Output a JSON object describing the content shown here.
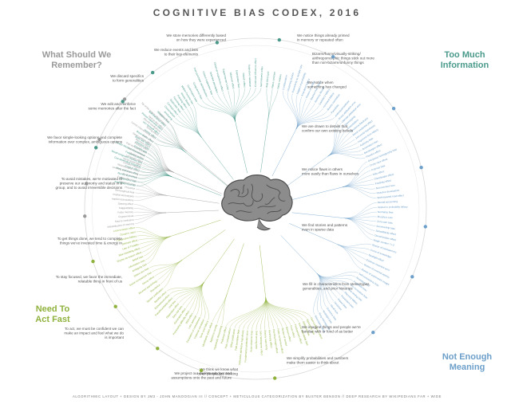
{
  "title": "COGNITIVE BIAS CODEX, 2016",
  "footer": "ALGORITHMIC LAYOUT + DESIGN BY JM3 - JOHN MANOOGIAN III // CONCEPT + METICULOUS CATEGORIZATION BY BUSTER BENSON // DEEP RESEARCH BY WIKIPEDIANS FAR + WIDE",
  "colors": {
    "too_much_information": "#4a9a8c",
    "not_enough_meaning": "#6c9fc9",
    "need_to_act_fast": "#8fb23d",
    "what_should_we_remember": "#9a9a9a",
    "brain": "#8a8a8a",
    "text": "#555555"
  },
  "quadrants": [
    {
      "id": "too_much_information",
      "label_lines": [
        "Too Much",
        "Information"
      ],
      "color": "#4a9a8c",
      "statements": [
        {
          "lines": [
            "We notice things already primed",
            "in memory or repeated often"
          ],
          "biases": [
            "Availability heuristic",
            "Attentional bias",
            "Illusory truth effect",
            "Mere exposure effect",
            "Context effect",
            "Cue-dependent forgetting",
            "Mood-congruent memory bias",
            "Frequency illusion",
            "Baader-Meinhof Phenomenon",
            "Empathy gap",
            "Omission bias",
            "Base rate fallacy"
          ]
        },
        {
          "lines": [
            "Bizarre/funny/visually-striking/",
            "anthropomorphic things stick out more",
            "than non-bizarre/unfunny things"
          ],
          "biases": [
            "Bizarreness effect",
            "Humor effect",
            "Von Restorff effect",
            "Picture superiority effect",
            "Self-relevance effect",
            "Negativity bias"
          ]
        },
        {
          "lines": [
            "We notice when",
            "something has changed"
          ],
          "biases": [
            "Anchoring",
            "Conservatism",
            "Contrast effect",
            "Distinction bias",
            "Focusing effect",
            "Framing effect",
            "Money illusion",
            "Weber-Fechner law"
          ]
        },
        {
          "lines": [
            "We are drawn to details that",
            "confirm our own existing beliefs"
          ],
          "biases": [
            "Confirmation bias",
            "Congruence bias",
            "Post-purchase rationalization",
            "Choice-supportive bias",
            "Selective perception",
            "Observer-expectancy effect",
            "Experimenter's bias",
            "Observer effect",
            "Expectation bias",
            "Ostrich effect",
            "Subjective validation",
            "Continued influence effect",
            "Semmelweis reflex"
          ]
        },
        {
          "lines": [
            "We notice flaws in others",
            "more easily than flaws in ourselves"
          ],
          "biases": [
            "Bias blind spot",
            "Naive cynicism",
            "Naive realism"
          ]
        }
      ]
    },
    {
      "id": "not_enough_meaning",
      "label_lines": [
        "Not Enough",
        "Meaning"
      ],
      "color": "#6c9fc9",
      "statements": [
        {
          "lines": [
            "We find stories and patterns",
            "even in sparse data"
          ],
          "biases": [
            "Confabulation",
            "Clustering illusion",
            "Insensitivity to sample size",
            "Neglect of probability",
            "Anecdotal fallacy",
            "Illusion of validity",
            "Masked man fallacy",
            "Recency illusion",
            "Gambler's fallacy",
            "Hot-hand fallacy",
            "Illusory correlation",
            "Pareidolia",
            "Anthropomorphism"
          ]
        },
        {
          "lines": [
            "We fill in characteristics from stereotypes,",
            "generalities, and prior histories"
          ],
          "biases": [
            "Group attribution error",
            "Ultimate attribution error",
            "Stereotyping",
            "Essentialism",
            "Functional fixedness",
            "Moral credential effect",
            "Just-world hypothesis",
            "Argument from fallacy",
            "Authority bias",
            "Automation bias",
            "Bandwagon effect",
            "Placebo effect"
          ]
        },
        {
          "lines": [
            "We imagine things and people we're",
            "familiar with or fond of as better"
          ],
          "biases": [
            "Out-group homogeneity bias",
            "Cross-race effect",
            "In-group bias",
            "Halo effect",
            "Cheerleader effect",
            "Positivity effect",
            "Not invented here",
            "Reactive devaluation",
            "Well-traveled road effect"
          ]
        },
        {
          "lines": [
            "We simplify probabilities and numbers",
            "make them easier to think about"
          ],
          "biases": [
            "Mental accounting",
            "Appeal to probability fallacy",
            "Normalcy bias",
            "Murphy's Law",
            "Zero sum bias",
            "Survivorship bias",
            "Subadditivity effect",
            "Denomination effect",
            "Magic number 7+-2"
          ]
        },
        {
          "lines": [
            "We think we know what",
            "other people are thinking"
          ],
          "biases": [
            "Illusion of transparency",
            "Curse of knowledge",
            "Spotlight effect",
            "Extrinsic incentive error",
            "Illusion of external agency",
            "Illusion of asymmetric insight"
          ]
        },
        {
          "lines": [
            "We project our current mindset and",
            "assumptions onto the past and future"
          ],
          "biases": [
            "Self-consistency bias",
            "Resistant bias",
            "Projection bias",
            "Pro-innovation bias",
            "Time-saving bias",
            "Planning fallacy",
            "Pessimism bias",
            "Impact bias",
            "Declinism",
            "Moral luck",
            "Outcome bias",
            "Hindsight bias",
            "Rosy retrospection",
            "Telescoping effect"
          ]
        }
      ]
    },
    {
      "id": "need_to_act_fast",
      "label_lines": [
        "Need To",
        "Act Fast"
      ],
      "color": "#8fb23d",
      "statements": [
        {
          "lines": [
            "To act, we must be confident we can",
            "make an impact and feel what we do",
            "is important"
          ],
          "biases": [
            "Overconfidence effect",
            "Egocentric bias",
            "Optimism bias",
            "Social desirability bias",
            "Third-person effect",
            "Forer effect",
            "Barnum effect",
            "Illusion of control",
            "False consensus effect",
            "Dunning-Kruger effect",
            "Hard-easy effect",
            "Illusory superiority",
            "Lake Wobegone effect",
            "Self-serving bias",
            "Actor-observer bias",
            "Fundamental attribution error",
            "Defensive attribution hypothesis",
            "Trait ascription bias",
            "Effort justification",
            "Risk compensation",
            "Peltzman effect"
          ]
        },
        {
          "lines": [
            "To stay focused, we favor the immediate,",
            "relatable thing in front of us"
          ],
          "biases": [
            "Hyperbolic discounting",
            "Appeal to novelty",
            "Identifiable victim effect"
          ]
        },
        {
          "lines": [
            "To get things done, we tend to complete",
            "things we've invested time & energy in"
          ],
          "biases": [
            "Sunk cost fallacy",
            "Irrational escalation",
            "Escalation of commitment",
            "Loss aversion",
            "IKEA effect",
            "Processing difficulty effect",
            "Generation effect",
            "Zero-risk bias",
            "Disposition effect",
            "Unit bias",
            "Pseudocertainty effect",
            "Endowment effect",
            "Backfire effect"
          ]
        },
        {
          "lines": [
            "To avoid mistakes, we're motivated to",
            "preserve our autonomy and status in a",
            "group, and to avoid irreversible decisions"
          ],
          "biases": [
            "System justification",
            "Reactance",
            "Reverse psychology",
            "Decoy effect",
            "Social comparison bias",
            "Status quo bias"
          ]
        },
        {
          "lines": [
            "We favor simple-looking options and complete",
            "information over complex, ambiguous options"
          ],
          "biases": [
            "Ambiguity bias",
            "Information bias",
            "Belief bias",
            "Rhyme as reason effect",
            "Bike-shedding effect",
            "Law of Triviality",
            "Delmore effect",
            "Conjunction fallacy",
            "Occam's razor",
            "Less-is-better effect"
          ]
        }
      ]
    },
    {
      "id": "what_should_we_remember",
      "label_lines": [
        "What Should We",
        "Remember?"
      ],
      "color": "#9a9a9a",
      "statements": [
        {
          "lines": [
            "We edit and reinforce",
            "some memories after the fact"
          ],
          "biases": [
            "Misattribution of memory",
            "Source confusion",
            "Cryptomnesia",
            "False memory",
            "Suggestibility",
            "Spacing effect"
          ]
        },
        {
          "lines": [
            "We discard specifics",
            "to form generalities"
          ],
          "biases": [
            "Implicit associations",
            "Implicit stereotypes",
            "Stereotypical bias",
            "Prejudice",
            "Negativity bias",
            "Fading affect bias"
          ]
        },
        {
          "lines": [
            "We reduce events and lists",
            "to their key elements"
          ],
          "biases": [
            "Peak-end rule",
            "Leveling and sharpening",
            "Misinformation effect",
            "Duration neglect",
            "Serial recall effect",
            "List-length effect",
            "Modality effect",
            "Memory inhibition",
            "Part-list cueing effect",
            "Primacy effect",
            "Recency effect",
            "Serial position effect",
            "Suffix effect"
          ]
        },
        {
          "lines": [
            "We store memories differently based",
            "on how they were experienced"
          ],
          "biases": [
            "Levels of processing effect",
            "Testing effect",
            "Absent-mindedness",
            "Next-in-line effect",
            "Tip of the tongue phenomenon",
            "Google effect"
          ]
        }
      ]
    }
  ]
}
